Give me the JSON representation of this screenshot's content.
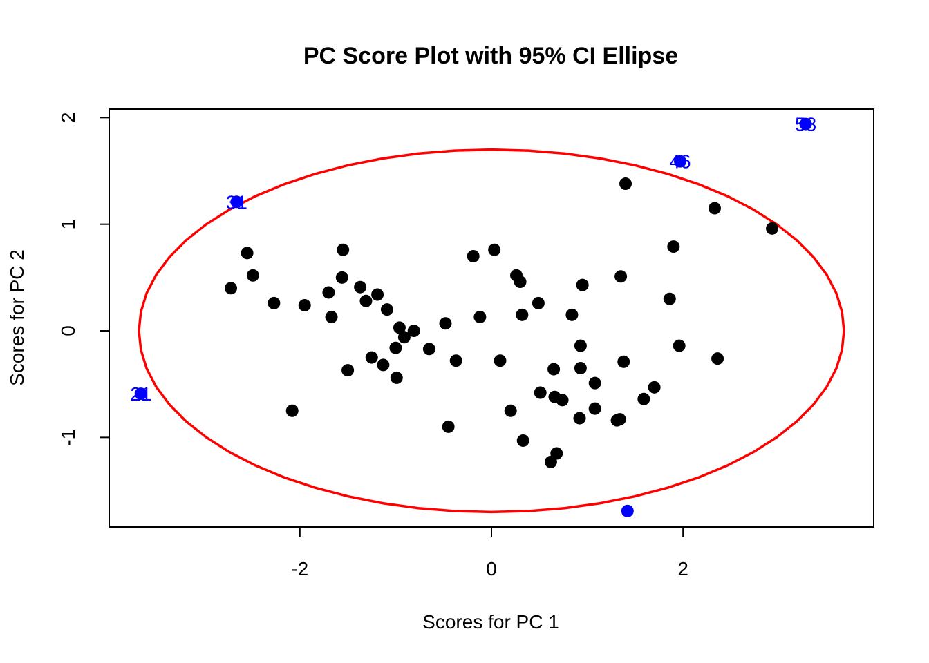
{
  "chart_data": {
    "type": "scatter",
    "title": "PC Score Plot with 95% CI Ellipse",
    "xlabel": "Scores for PC 1",
    "ylabel": "Scores for PC 2",
    "xlim": [
      -3.99,
      3.99
    ],
    "ylim": [
      -1.84,
      2.08
    ],
    "xticks": [
      -2,
      0,
      2
    ],
    "xtick_labels": [
      "-2",
      "0",
      "2"
    ],
    "yticks": [
      -1,
      0,
      1,
      2
    ],
    "ytick_labels": [
      "-1",
      "0",
      "1",
      "2"
    ],
    "grid": false,
    "legend": "none",
    "colors": {
      "points": "#000000",
      "outliers": "#0000ff",
      "ellipse": "#ff0000"
    },
    "ellipse": {
      "center": [
        0,
        0
      ],
      "semi_axis_x": 3.68,
      "semi_axis_y": 1.7
    },
    "points": [
      [
        -2.72,
        0.4
      ],
      [
        -2.55,
        0.73
      ],
      [
        -2.49,
        0.52
      ],
      [
        -2.27,
        0.26
      ],
      [
        -2.08,
        -0.75
      ],
      [
        -1.95,
        0.24
      ],
      [
        -1.7,
        0.36
      ],
      [
        -1.67,
        0.13
      ],
      [
        -1.56,
        0.5
      ],
      [
        -1.55,
        0.76
      ],
      [
        -1.5,
        -0.37
      ],
      [
        -1.37,
        0.41
      ],
      [
        -1.31,
        0.28
      ],
      [
        -1.25,
        -0.25
      ],
      [
        -1.19,
        0.34
      ],
      [
        -1.13,
        -0.32
      ],
      [
        -1.09,
        0.2
      ],
      [
        -1.0,
        -0.16
      ],
      [
        -0.99,
        -0.44
      ],
      [
        -0.96,
        0.03
      ],
      [
        -0.91,
        -0.06
      ],
      [
        -0.81,
        0.0
      ],
      [
        -0.65,
        -0.17
      ],
      [
        -0.48,
        0.07
      ],
      [
        -0.45,
        -0.9
      ],
      [
        -0.37,
        -0.28
      ],
      [
        -0.19,
        0.7
      ],
      [
        -0.12,
        0.13
      ],
      [
        0.03,
        0.76
      ],
      [
        0.09,
        -0.28
      ],
      [
        0.2,
        -0.75
      ],
      [
        0.26,
        0.52
      ],
      [
        0.3,
        0.46
      ],
      [
        0.32,
        0.15
      ],
      [
        0.33,
        -1.03
      ],
      [
        0.49,
        0.26
      ],
      [
        0.51,
        -0.58
      ],
      [
        0.62,
        -1.23
      ],
      [
        0.65,
        -0.36
      ],
      [
        0.66,
        -0.62
      ],
      [
        0.68,
        -1.15
      ],
      [
        0.74,
        -0.65
      ],
      [
        0.84,
        0.15
      ],
      [
        0.92,
        -0.82
      ],
      [
        0.93,
        -0.35
      ],
      [
        0.93,
        -0.14
      ],
      [
        0.95,
        0.43
      ],
      [
        1.08,
        -0.49
      ],
      [
        1.08,
        -0.73
      ],
      [
        1.31,
        -0.84
      ],
      [
        1.34,
        -0.83
      ],
      [
        1.35,
        0.51
      ],
      [
        1.38,
        -0.29
      ],
      [
        1.4,
        1.38
      ],
      [
        1.59,
        -0.64
      ],
      [
        1.7,
        -0.53
      ],
      [
        1.86,
        0.3
      ],
      [
        1.9,
        0.79
      ],
      [
        1.96,
        -0.14
      ],
      [
        2.33,
        1.15
      ],
      [
        2.36,
        -0.26
      ],
      [
        2.93,
        0.96
      ]
    ],
    "outliers": [
      {
        "label": "21",
        "x": -3.66,
        "y": -0.59
      },
      {
        "label": "31",
        "x": -2.66,
        "y": 1.21
      },
      {
        "label": "46",
        "x": 1.97,
        "y": 1.59
      },
      {
        "label": "58",
        "x": 3.28,
        "y": 1.94
      },
      {
        "label": "",
        "x": 1.42,
        "y": -1.69
      }
    ]
  }
}
